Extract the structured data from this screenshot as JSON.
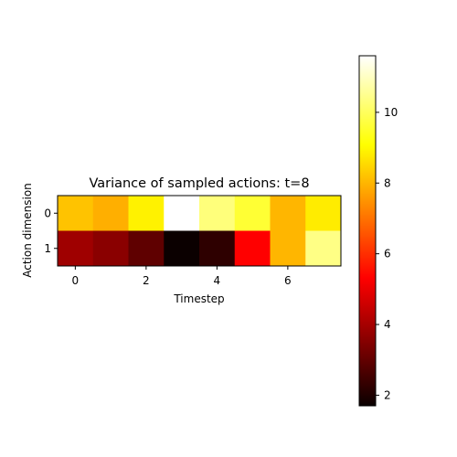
{
  "chart_data": {
    "type": "heatmap",
    "title": "Variance of sampled actions: t=8",
    "xlabel": "Timestep",
    "ylabel": "Action dimension",
    "x_ticks": [
      "0",
      "2",
      "4",
      "6"
    ],
    "y_ticks": [
      "0",
      "1"
    ],
    "rows": [
      [
        8.2,
        7.9,
        8.9,
        11.6,
        10.3,
        9.6,
        8.0,
        8.8
      ],
      [
        3.8,
        3.5,
        2.9,
        1.7,
        2.2,
        5.2,
        8.0,
        10.4
      ]
    ],
    "colormap": "hot",
    "vmin": 1.7,
    "vmax": 11.6,
    "colorbar_ticks": [
      "2",
      "4",
      "6",
      "8",
      "10"
    ],
    "colorbar_values": [
      2,
      4,
      6,
      8,
      10
    ]
  }
}
